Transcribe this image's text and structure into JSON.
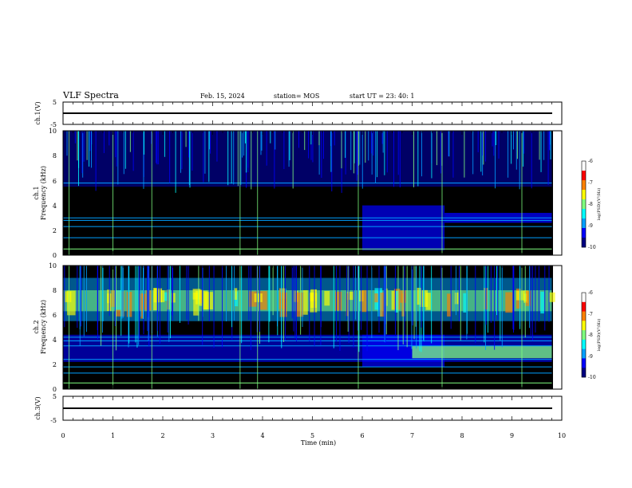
{
  "header": {
    "title": "VLF Spectra",
    "date": "Feb. 15, 2024",
    "station": "station= MOS",
    "start": "start  UT  =   23: 40: 1"
  },
  "colors": {
    "background": "#000000",
    "frame": "#000000",
    "colormap": [
      "#000080",
      "#0000ff",
      "#00a0ff",
      "#00ffff",
      "#80ff80",
      "#ffff00",
      "#ff8000",
      "#ff0000",
      "#ffffff"
    ]
  },
  "chart_data": [
    {
      "type": "line",
      "id": "ch1-voltage",
      "ylabel": "ch.1(V)",
      "ylim": [
        -5,
        5
      ],
      "yticks": [
        "5",
        "-5"
      ],
      "series": [
        {
          "x": [
            0,
            9.8
          ],
          "y": [
            0,
            0
          ]
        }
      ]
    },
    {
      "type": "heatmap",
      "id": "ch1-spectrogram",
      "ylabel": "ch.1\nFrequency (kHz)",
      "ylim": [
        0,
        10
      ],
      "yticks": [
        "0",
        "2",
        "4",
        "6",
        "8",
        "10"
      ],
      "xlim": [
        0,
        10
      ],
      "data_end_min": 9.8,
      "features": {
        "sferic_band_khz": [
          5.5,
          10
        ],
        "horizontal_lines_khz": [
          0.5,
          1.4,
          2.3,
          2.8,
          3.0,
          5.8
        ],
        "broadband_block": {
          "t_min": [
            6.0,
            7.65
          ],
          "f_khz": [
            0.4,
            4.0
          ]
        },
        "elevated_block": {
          "t_min": [
            7.65,
            9.8
          ],
          "f_khz": [
            2.6,
            3.4
          ]
        }
      },
      "colorbar": {
        "label": "log(PSD)(V²/Hz)",
        "ticks": [
          "-6",
          "-7",
          "-8",
          "-9",
          "-10"
        ],
        "range": [
          -10,
          -6
        ]
      }
    },
    {
      "type": "heatmap",
      "id": "ch2-spectrogram",
      "ylabel": "ch.2\nFrequency (kHz)",
      "ylim": [
        0,
        10
      ],
      "yticks": [
        "0",
        "2",
        "4",
        "6",
        "8",
        "10"
      ],
      "xlim": [
        0,
        10
      ],
      "data_end_min": 9.8,
      "features": {
        "intense_band_khz": [
          5.5,
          9.0
        ],
        "horizontal_lines_khz": [
          0.5,
          1.3,
          1.8,
          2.4,
          3.5,
          3.9,
          4.2
        ],
        "broadband_block": {
          "t_min": [
            6.0,
            7.65
          ],
          "f_khz": [
            1.8,
            4.4
          ]
        },
        "elevated_block": {
          "t_min": [
            7.0,
            9.8
          ],
          "f_khz": [
            2.5,
            3.5
          ]
        }
      },
      "colorbar": {
        "label": "log(PSD)(V²/Hz)",
        "ticks": [
          "-6",
          "-7",
          "-8",
          "-9",
          "-10"
        ],
        "range": [
          -10,
          -6
        ]
      }
    },
    {
      "type": "line",
      "id": "ch3-voltage",
      "ylabel": "ch.3(V)",
      "ylim": [
        -5,
        5
      ],
      "yticks": [
        "5",
        "-5"
      ],
      "xlabel": "Time (min)",
      "xticks": [
        "0",
        "1",
        "2",
        "3",
        "4",
        "5",
        "6",
        "7",
        "8",
        "9",
        "10"
      ],
      "xlim": [
        0,
        10
      ],
      "series": [
        {
          "x": [
            0,
            9.8
          ],
          "y": [
            0,
            0
          ]
        }
      ]
    }
  ]
}
